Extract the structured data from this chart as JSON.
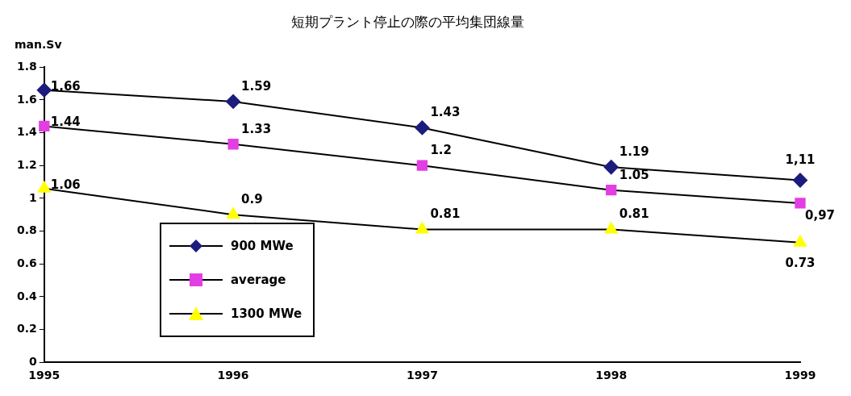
{
  "chart_data": {
    "type": "line",
    "title": "短期プラント停止の際の平均集団線量",
    "ylabel": "man.Sv",
    "categories": [
      "1995",
      "1996",
      "1997",
      "1998",
      "1999"
    ],
    "series": [
      {
        "name": "900 MWe",
        "color": "#1c1c7c",
        "marker": "diamond",
        "values": [
          1.66,
          1.59,
          1.43,
          1.19,
          1.11
        ],
        "value_labels": [
          "1.66",
          "1.59",
          "1.43",
          "1.19",
          "1,11"
        ]
      },
      {
        "name": "average",
        "color": "#e33ee3",
        "marker": "square",
        "values": [
          1.44,
          1.33,
          1.2,
          1.05,
          0.97
        ],
        "value_labels": [
          "1.44",
          "1.33",
          "1.2",
          "1.05",
          "0,97"
        ]
      },
      {
        "name": "1300 MWe",
        "color": "#ffff00",
        "marker": "triangle",
        "values": [
          1.06,
          0.9,
          0.81,
          0.81,
          0.73
        ],
        "value_labels": [
          "1.06",
          "0.9",
          "0.81",
          "0.81",
          "0.73"
        ]
      }
    ],
    "ylim": [
      0,
      1.8
    ],
    "yticks": [
      0,
      0.2,
      0.4,
      0.6,
      0.8,
      1,
      1.2,
      1.4,
      1.6,
      1.8
    ],
    "grid": false,
    "legend": "left"
  }
}
